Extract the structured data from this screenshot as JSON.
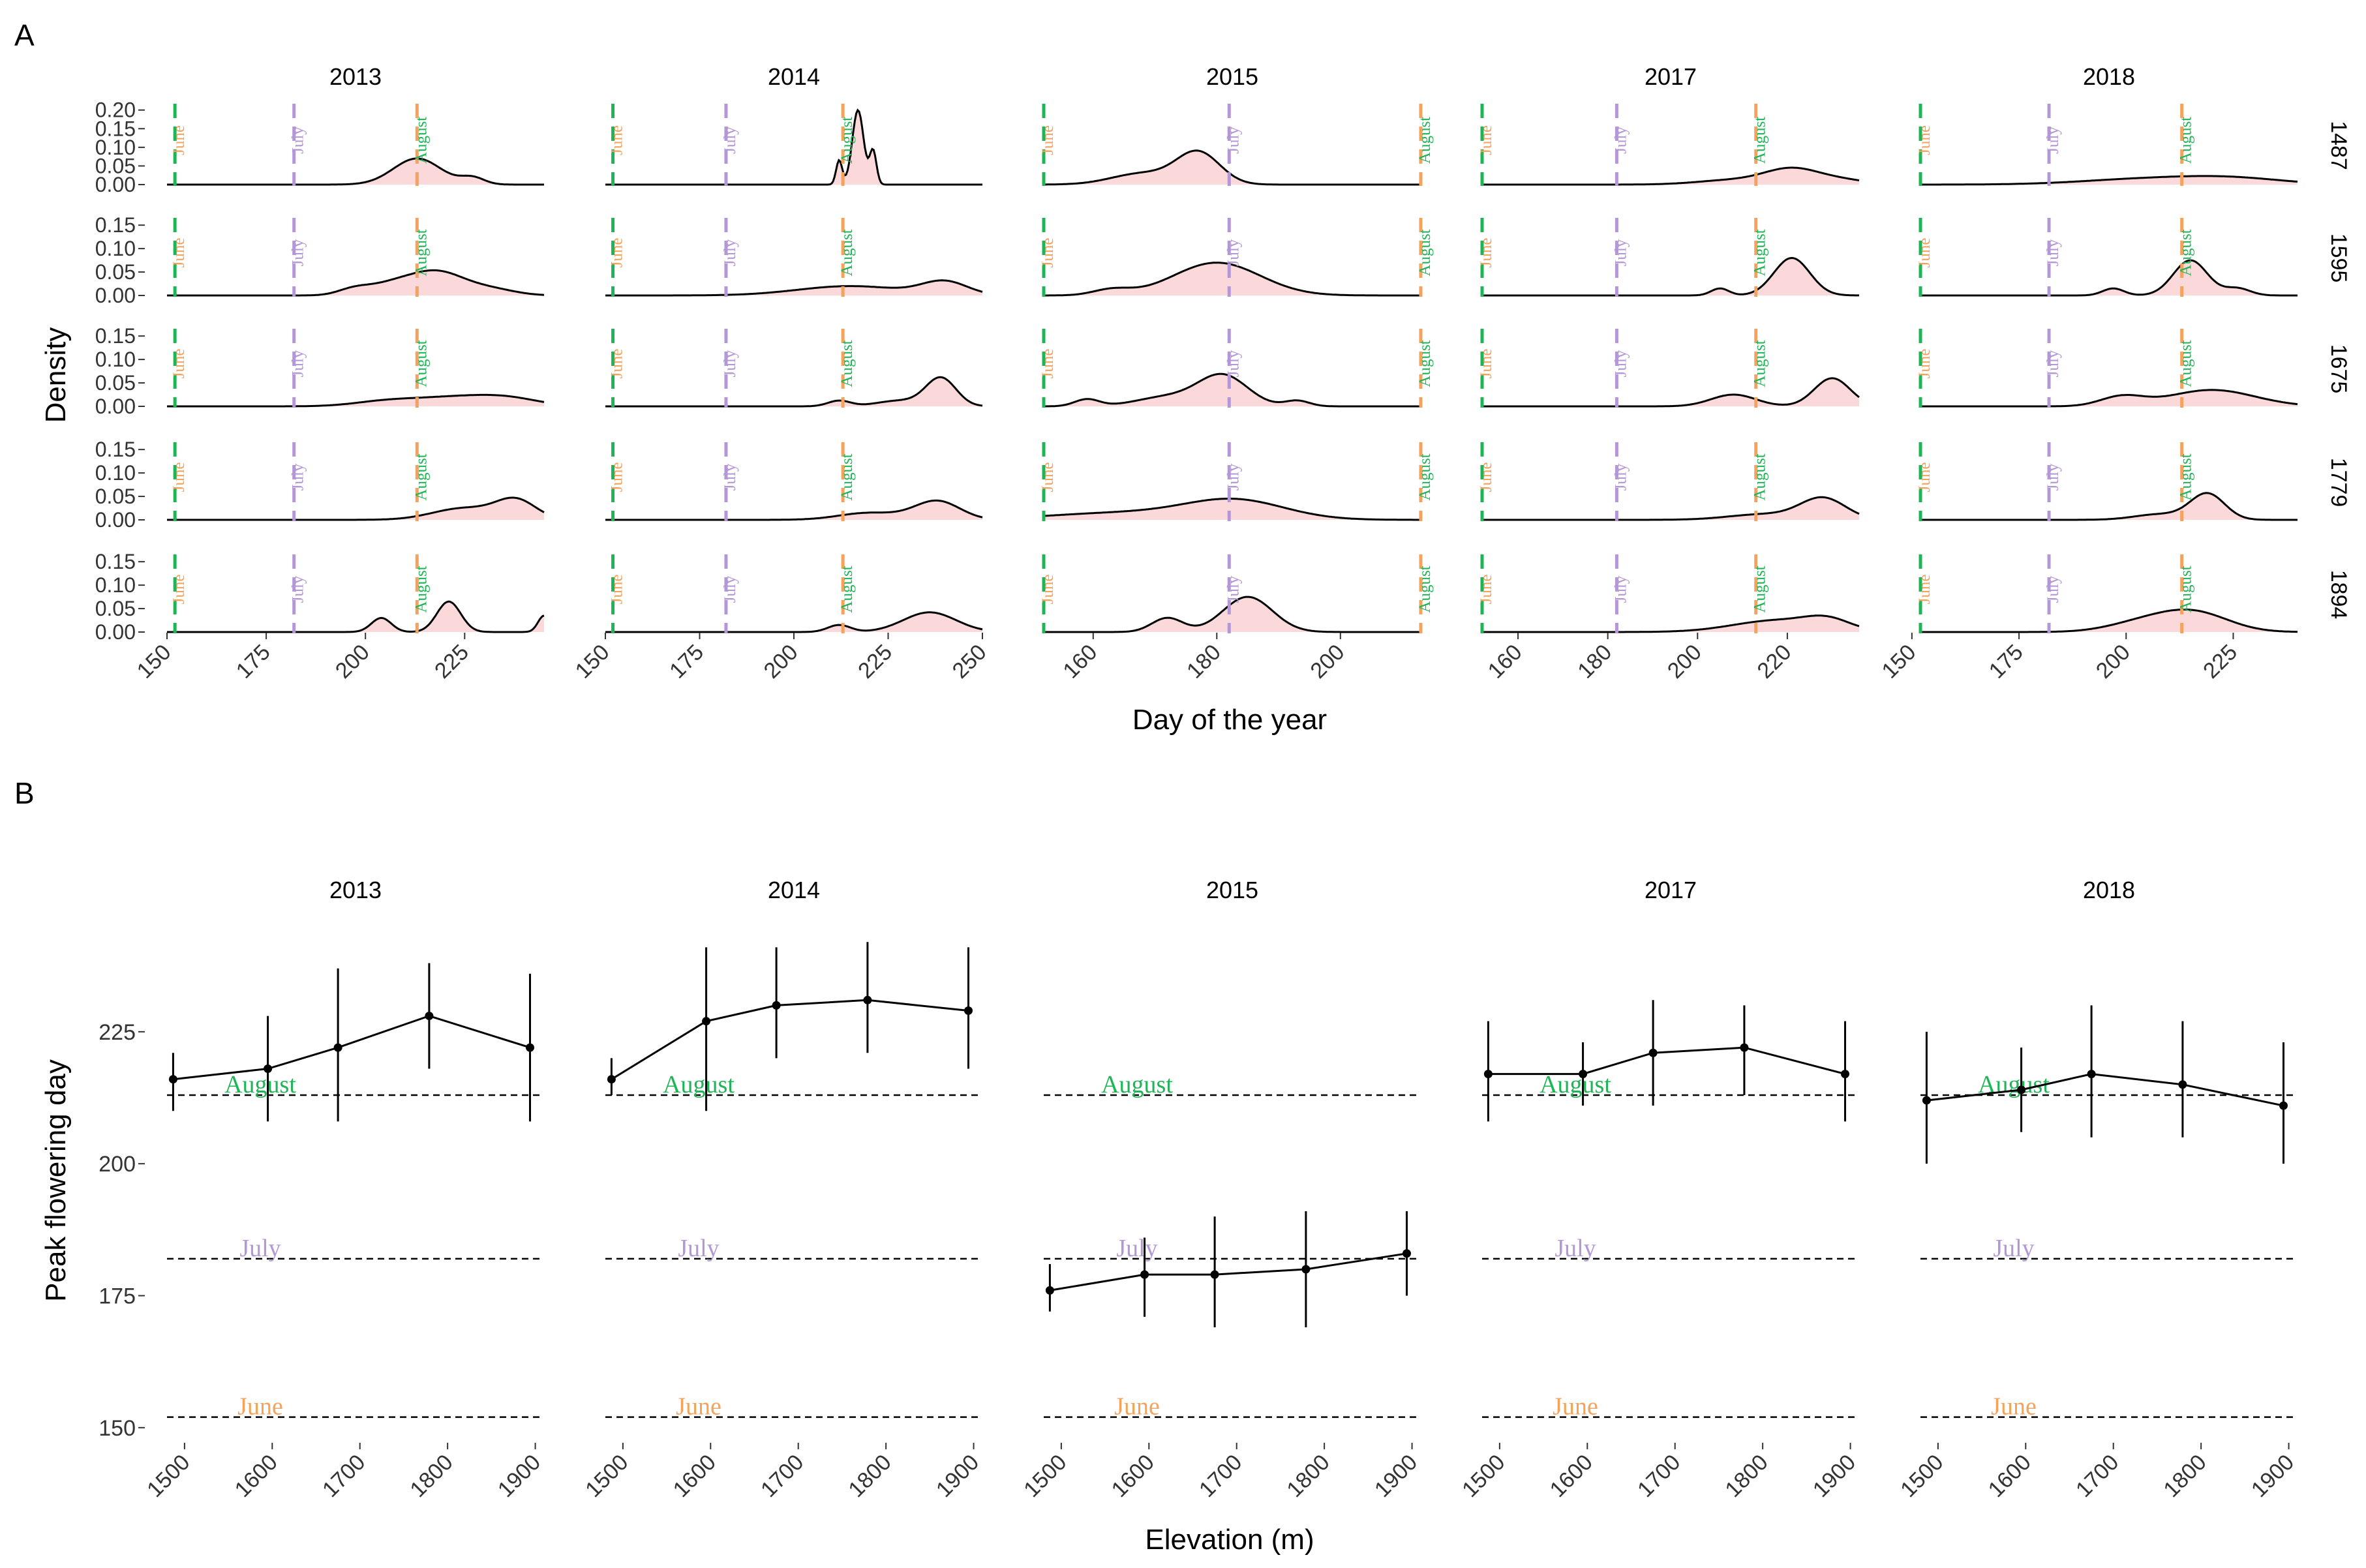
{
  "panel_labels": {
    "a": "A",
    "b": "B"
  },
  "colors": {
    "june": "#1fb556",
    "july": "#b497d6",
    "august": "#f5a35c",
    "density_fill": "#fbd9db",
    "line": "#000000"
  },
  "chart_data": [
    {
      "type": "area",
      "panel": "A",
      "xlabel": "Day of the year",
      "ylabel": "Density",
      "years": [
        "2013",
        "2014",
        "2015",
        "2017",
        "2018"
      ],
      "elevations": [
        "1487",
        "1595",
        "1675",
        "1779",
        "1894"
      ],
      "xlim": {
        "2013": [
          150,
          245
        ],
        "2014": [
          150,
          250
        ],
        "2015": [
          152,
          213
        ],
        "2017": [
          152,
          236
        ],
        "2018": [
          152,
          240
        ]
      },
      "xticks": {
        "2013": [
          150,
          175,
          200,
          225
        ],
        "2014": [
          150,
          175,
          200,
          225,
          250
        ],
        "2015": [
          160,
          180,
          200
        ],
        "2017": [
          160,
          180,
          200,
          220
        ],
        "2018": [
          150,
          175,
          200,
          225
        ]
      },
      "yticks_top_row": [
        0.0,
        0.05,
        0.1,
        0.15,
        0.2
      ],
      "yticks_other_rows": [
        0.0,
        0.05,
        0.1,
        0.15
      ],
      "ylim_top_row": [
        0,
        0.21
      ],
      "ylim_other_rows": [
        0,
        0.16
      ],
      "month_lines": [
        {
          "label": "June",
          "day": 152
        },
        {
          "label": "July",
          "day": 182
        },
        {
          "label": "August",
          "day": 213
        }
      ],
      "densities": {
        "2013": {
          "1487": [
            [
              213,
              0.07,
              6
            ],
            [
              227,
              0.018,
              3
            ]
          ],
          "1595": [
            [
              197,
              0.012,
              4
            ],
            [
              206,
              0.02,
              6
            ],
            [
              218,
              0.05,
              7
            ],
            [
              232,
              0.012,
              6
            ]
          ],
          "1675": [
            [
              205,
              0.01,
              8
            ],
            [
              222,
              0.018,
              10
            ],
            [
              236,
              0.015,
              8
            ]
          ],
          "1779": [
            [
              225,
              0.025,
              8
            ],
            [
              238,
              0.04,
              5
            ]
          ],
          "1894": [
            [
              204,
              0.03,
              2.5
            ],
            [
              221,
              0.065,
              3
            ],
            [
              245,
              0.035,
              1.5
            ]
          ]
        },
        "2014": {
          "1487": [
            [
              212,
              0.065,
              0.8
            ],
            [
              217,
              0.2,
              1.5
            ],
            [
              221,
              0.09,
              0.9
            ]
          ],
          "1595": [
            [
              215,
              0.02,
              14
            ],
            [
              240,
              0.028,
              6
            ]
          ],
          "1675": [
            [
              212,
              0.012,
              3
            ],
            [
              228,
              0.012,
              6
            ],
            [
              239,
              0.06,
              4
            ]
          ],
          "1779": [
            [
              220,
              0.015,
              8
            ],
            [
              238,
              0.04,
              6
            ]
          ],
          "1894": [
            [
              212,
              0.015,
              3
            ],
            [
              236,
              0.042,
              7
            ]
          ]
        },
        "2015": {
          "1487": [
            [
              168,
              0.03,
              5
            ],
            [
              177,
              0.085,
              3.5
            ]
          ],
          "1595": [
            [
              163,
              0.012,
              3
            ],
            [
              180,
              0.07,
              7
            ]
          ],
          "1675": [
            [
              159,
              0.015,
              2
            ],
            [
              172,
              0.02,
              5
            ],
            [
              181,
              0.065,
              4
            ],
            [
              193,
              0.012,
              2
            ]
          ],
          "1779": [
            [
              165,
              0.015,
              12
            ],
            [
              183,
              0.04,
              8
            ]
          ],
          "1894": [
            [
              172,
              0.03,
              2.5
            ],
            [
              185,
              0.075,
              4
            ]
          ]
        },
        "2017": {
          "1487": [
            [
              208,
              0.012,
              8
            ],
            [
              221,
              0.04,
              6
            ],
            [
              232,
              0.012,
              6
            ]
          ],
          "1595": [
            [
              205,
              0.015,
              2
            ],
            [
              221,
              0.08,
              4
            ]
          ],
          "1675": [
            [
              208,
              0.025,
              5
            ],
            [
              230,
              0.06,
              4
            ]
          ],
          "1779": [
            [
              215,
              0.012,
              8
            ],
            [
              228,
              0.045,
              5
            ]
          ],
          "1894": [
            [
              218,
              0.025,
              10
            ],
            [
              229,
              0.02,
              5
            ]
          ]
        },
        "2018": {
          "1487": [
            [
              205,
              0.015,
              15
            ],
            [
              225,
              0.015,
              12
            ]
          ],
          "1595": [
            [
              197,
              0.015,
              2.5
            ],
            [
              215,
              0.075,
              4
            ],
            [
              226,
              0.015,
              3
            ]
          ],
          "1675": [
            [
              199,
              0.02,
              5
            ],
            [
              220,
              0.035,
              10
            ]
          ],
          "1779": [
            [
              208,
              0.012,
              6
            ],
            [
              219,
              0.055,
              4
            ]
          ],
          "1894": [
            [
              204,
              0.02,
              8
            ],
            [
              216,
              0.04,
              8
            ]
          ]
        }
      }
    },
    {
      "type": "line",
      "panel": "B",
      "xlabel": "Elevation (m)",
      "ylabel": "Peak flowering day",
      "xlim": [
        1480,
        1910
      ],
      "xticks": [
        1500,
        1600,
        1700,
        1800,
        1900
      ],
      "yticks": [
        150,
        175,
        200,
        225
      ],
      "ylim": [
        148,
        245
      ],
      "reference_lines": [
        {
          "label": "June",
          "day": 152
        },
        {
          "label": "July",
          "day": 182
        },
        {
          "label": "August",
          "day": 213
        }
      ],
      "series": [
        {
          "year": "2013",
          "points": [
            {
              "x": 1487,
              "y": 216,
              "lo": 210,
              "hi": 221
            },
            {
              "x": 1595,
              "y": 218,
              "lo": 208,
              "hi": 228
            },
            {
              "x": 1675,
              "y": 222,
              "lo": 208,
              "hi": 237
            },
            {
              "x": 1779,
              "y": 228,
              "lo": 218,
              "hi": 238
            },
            {
              "x": 1894,
              "y": 222,
              "lo": 208,
              "hi": 236
            }
          ]
        },
        {
          "year": "2014",
          "points": [
            {
              "x": 1487,
              "y": 216,
              "lo": 213,
              "hi": 220
            },
            {
              "x": 1595,
              "y": 227,
              "lo": 210,
              "hi": 241
            },
            {
              "x": 1675,
              "y": 230,
              "lo": 220,
              "hi": 241
            },
            {
              "x": 1779,
              "y": 231,
              "lo": 221,
              "hi": 242
            },
            {
              "x": 1894,
              "y": 229,
              "lo": 218,
              "hi": 241
            }
          ]
        },
        {
          "year": "2015",
          "points": [
            {
              "x": 1487,
              "y": 176,
              "lo": 172,
              "hi": 181
            },
            {
              "x": 1595,
              "y": 179,
              "lo": 171,
              "hi": 186
            },
            {
              "x": 1675,
              "y": 179,
              "lo": 169,
              "hi": 190
            },
            {
              "x": 1779,
              "y": 180,
              "lo": 169,
              "hi": 191
            },
            {
              "x": 1894,
              "y": 183,
              "lo": 175,
              "hi": 191
            }
          ]
        },
        {
          "year": "2017",
          "points": [
            {
              "x": 1487,
              "y": 217,
              "lo": 208,
              "hi": 227
            },
            {
              "x": 1595,
              "y": 217,
              "lo": 211,
              "hi": 223
            },
            {
              "x": 1675,
              "y": 221,
              "lo": 211,
              "hi": 231
            },
            {
              "x": 1779,
              "y": 222,
              "lo": 213,
              "hi": 230
            },
            {
              "x": 1894,
              "y": 217,
              "lo": 208,
              "hi": 227
            }
          ]
        },
        {
          "year": "2018",
          "points": [
            {
              "x": 1487,
              "y": 212,
              "lo": 200,
              "hi": 225
            },
            {
              "x": 1595,
              "y": 214,
              "lo": 206,
              "hi": 222
            },
            {
              "x": 1675,
              "y": 217,
              "lo": 205,
              "hi": 230
            },
            {
              "x": 1779,
              "y": 215,
              "lo": 205,
              "hi": 227
            },
            {
              "x": 1894,
              "y": 211,
              "lo": 200,
              "hi": 223
            }
          ]
        }
      ]
    }
  ]
}
